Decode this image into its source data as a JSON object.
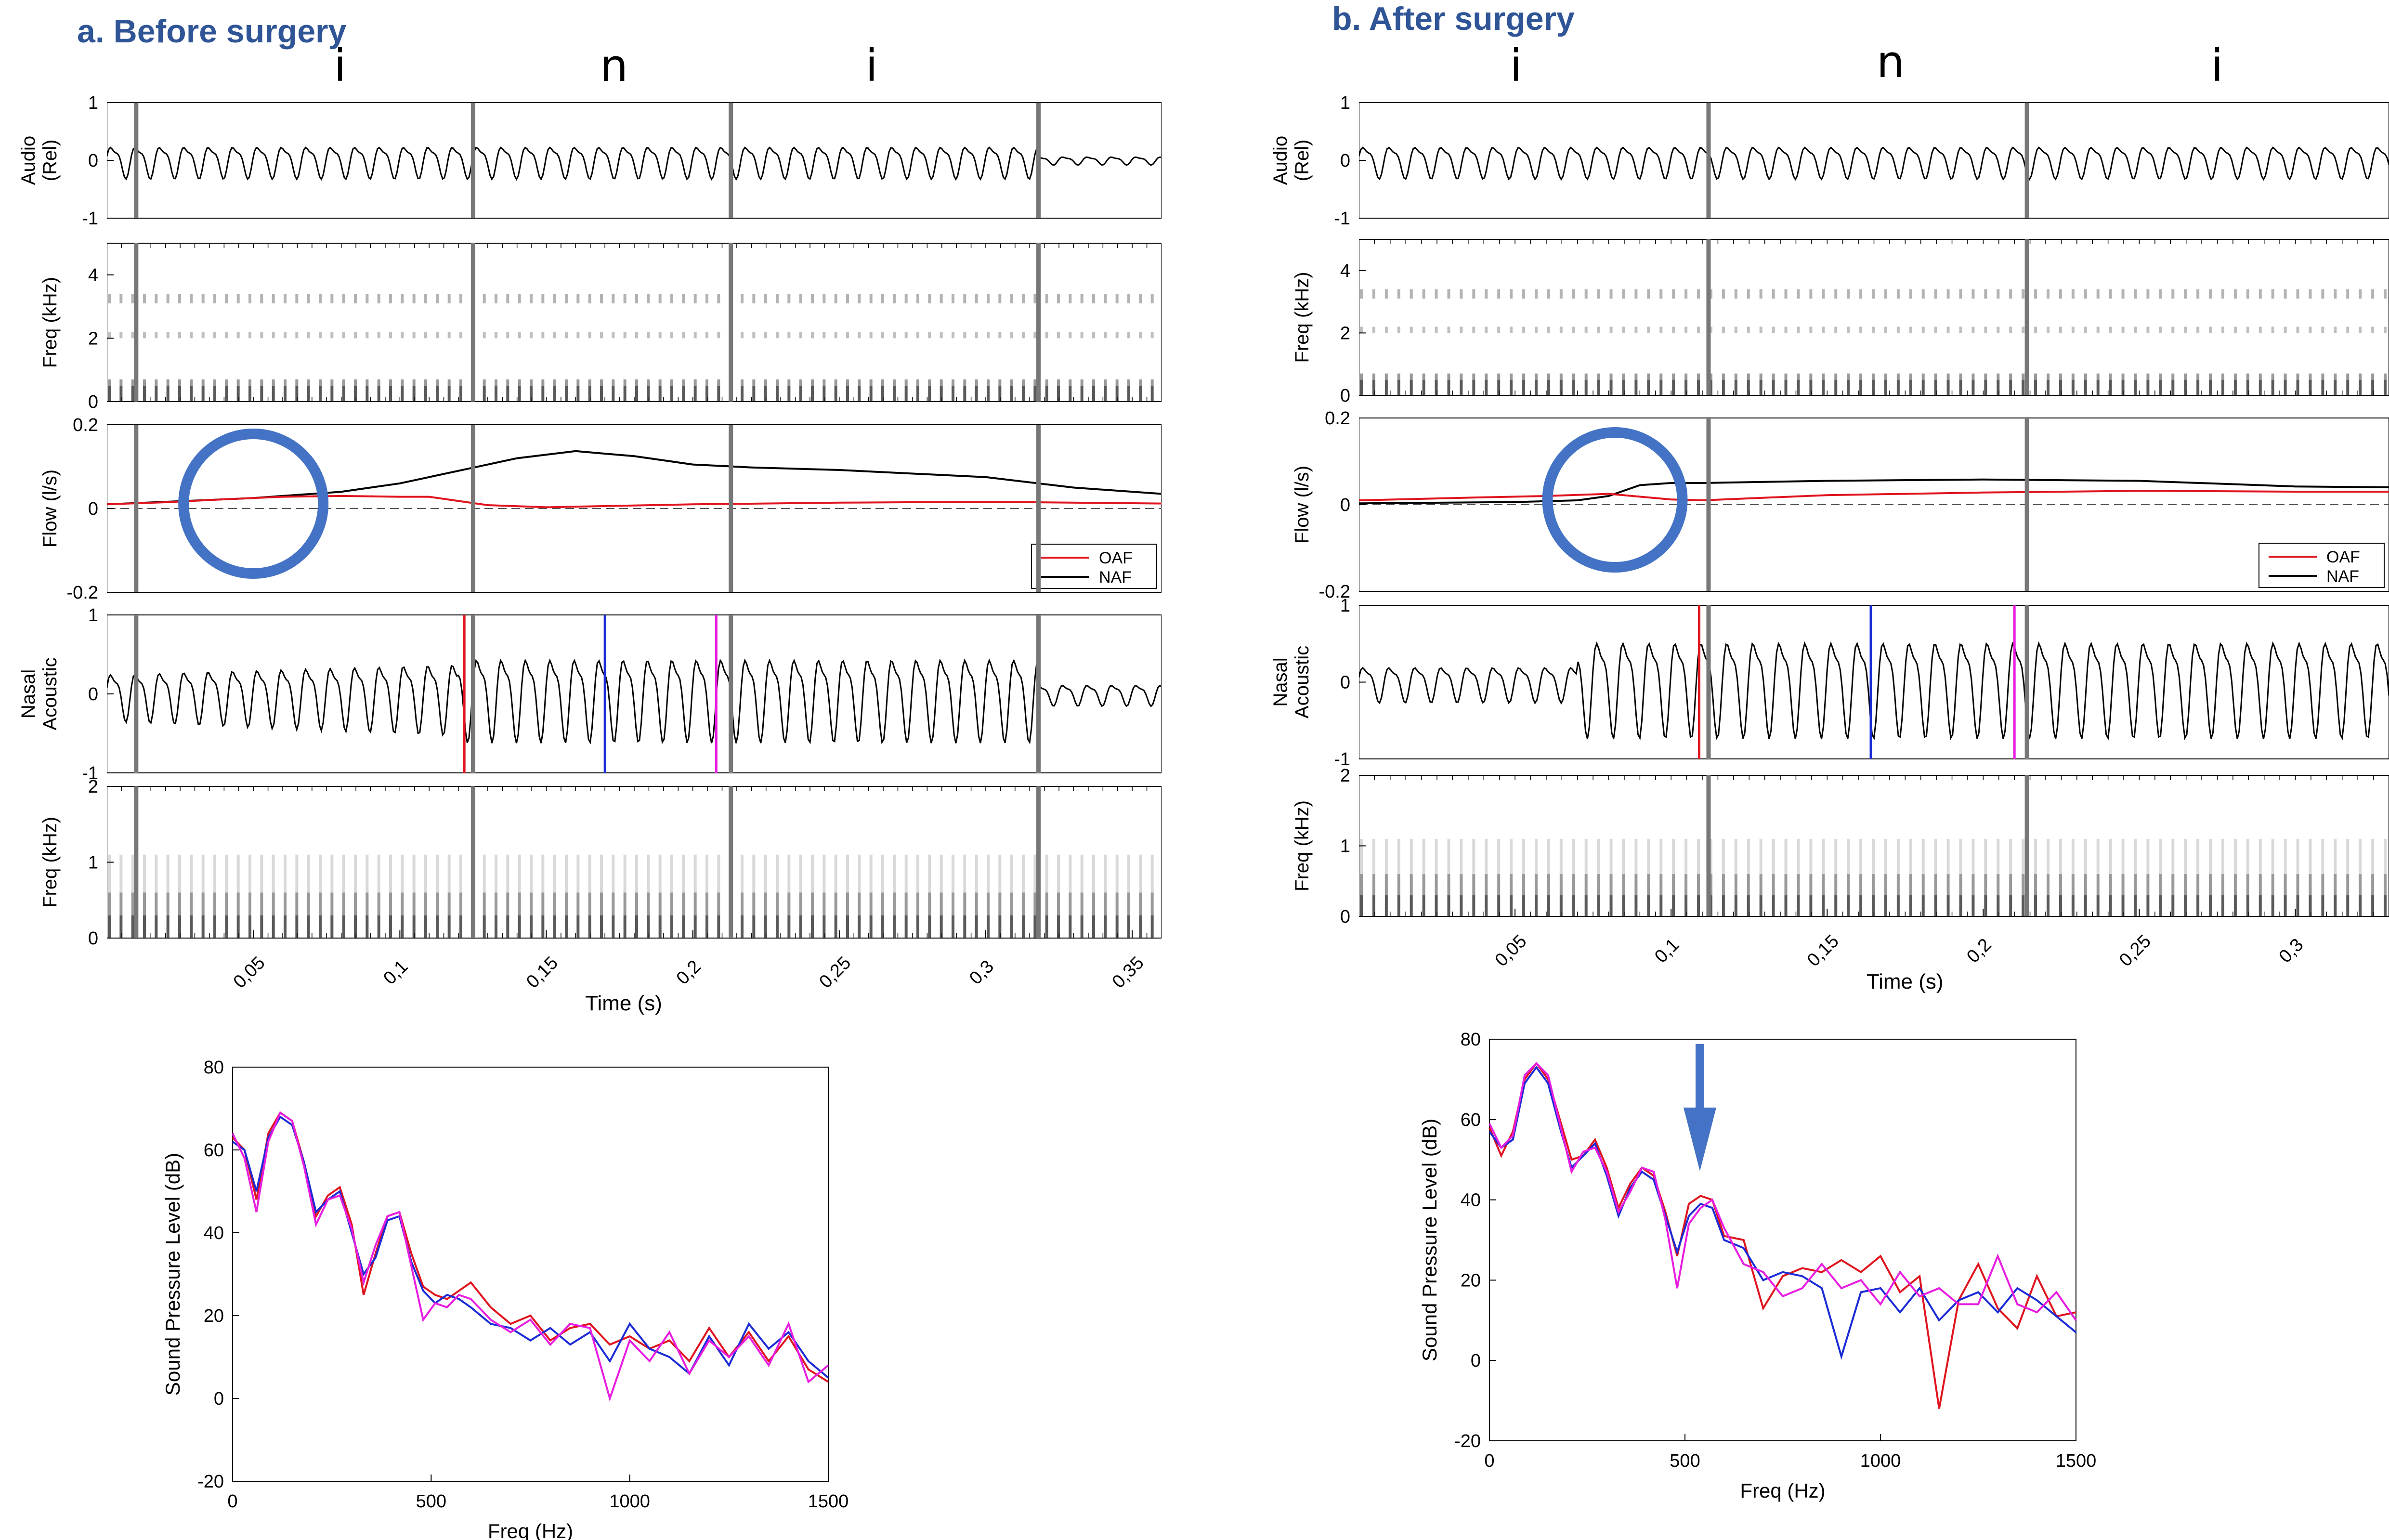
{
  "panels": [
    {
      "title": "a. Before surgery",
      "phonemes": [
        "i",
        "n",
        "i"
      ],
      "segment_boundaries_s": [
        0.01,
        0.125,
        0.213,
        0.318
      ],
      "time_range_s": [
        0,
        0.36
      ],
      "x_ticks_s": [
        0.05,
        0.1,
        0.15,
        0.2,
        0.25,
        0.3,
        0.35
      ],
      "x_tick_labels": [
        "0,05",
        "0,1",
        "0,15",
        "0,2",
        "0,25",
        "0,3",
        "0,35"
      ],
      "x_label": "Time (s)",
      "audio": {
        "ylabel": [
          "Audio",
          "(Rel)"
        ],
        "ylim": [
          -1,
          1
        ],
        "ticks": [
          "1",
          "0",
          "-1"
        ]
      },
      "audio_spectrogram": {
        "ylabel": "Freq (kHz)",
        "ylim": [
          0,
          5
        ],
        "ticks": [
          "4",
          "2",
          "0"
        ]
      },
      "flow": {
        "ylabel": "Flow (l/s)",
        "ylim": [
          -0.2,
          0.2
        ],
        "ticks": [
          "0.2",
          "0",
          "-0.2"
        ],
        "legend": [
          "OAF",
          "NAF"
        ],
        "naf_t": [
          0,
          0.05,
          0.08,
          0.1,
          0.12,
          0.14,
          0.16,
          0.18,
          0.2,
          0.22,
          0.25,
          0.3,
          0.33,
          0.36
        ],
        "naf_v": [
          0.01,
          0.025,
          0.04,
          0.06,
          0.09,
          0.12,
          0.137,
          0.125,
          0.105,
          0.098,
          0.092,
          0.075,
          0.05,
          0.035
        ],
        "oaf_t": [
          0,
          0.02,
          0.04,
          0.06,
          0.08,
          0.1,
          0.11,
          0.13,
          0.15,
          0.2,
          0.25,
          0.3,
          0.36
        ],
        "oaf_v": [
          0.01,
          0.015,
          0.022,
          0.028,
          0.03,
          0.028,
          0.028,
          0.008,
          0.003,
          0.01,
          0.014,
          0.016,
          0.012
        ]
      },
      "nasal": {
        "ylabel": [
          "Nasal",
          "Acoustic"
        ],
        "ylim": [
          -1,
          1
        ],
        "ticks": [
          "1",
          "0",
          "-1"
        ]
      },
      "nasal_spectrogram": {
        "ylabel": "Freq (kHz)",
        "ylim": [
          0,
          2
        ],
        "ticks": [
          "2",
          "1",
          "0"
        ]
      },
      "markers_s": [
        0.122,
        0.17,
        0.208
      ]
    },
    {
      "title": "b. After surgery",
      "phonemes": [
        "i",
        "n",
        "i"
      ],
      "segment_boundaries_s": [
        0.112,
        0.214
      ],
      "time_range_s": [
        0,
        0.33
      ],
      "x_ticks_s": [
        0.05,
        0.1,
        0.15,
        0.2,
        0.25,
        0.3
      ],
      "x_tick_labels": [
        "0,05",
        "0,1",
        "0,15",
        "0,2",
        "0,25",
        "0,3"
      ],
      "x_label": "Time (s)",
      "audio": {
        "ylabel": [
          "Audio",
          "(Rel)"
        ],
        "ylim": [
          -1,
          1
        ],
        "ticks": [
          "1",
          "0",
          "-1"
        ]
      },
      "audio_spectrogram": {
        "ylabel": "Freq (kHz)",
        "ylim": [
          0,
          5
        ],
        "ticks": [
          "4",
          "2",
          "0"
        ]
      },
      "flow": {
        "ylabel": "Flow (l/s)",
        "ylim": [
          -0.2,
          0.2
        ],
        "ticks": [
          "0.2",
          "0",
          "-0.2"
        ],
        "legend": [
          "OAF",
          "NAF"
        ],
        "naf_t": [
          0,
          0.05,
          0.07,
          0.08,
          0.09,
          0.1,
          0.11,
          0.15,
          0.2,
          0.25,
          0.3,
          0.33
        ],
        "naf_v": [
          0.003,
          0.006,
          0.01,
          0.02,
          0.045,
          0.05,
          0.05,
          0.055,
          0.058,
          0.055,
          0.042,
          0.04
        ],
        "oaf_t": [
          0,
          0.04,
          0.06,
          0.08,
          0.1,
          0.11,
          0.15,
          0.2,
          0.25,
          0.3,
          0.33
        ],
        "oaf_v": [
          0.01,
          0.017,
          0.02,
          0.025,
          0.012,
          0.01,
          0.022,
          0.028,
          0.032,
          0.03,
          0.03
        ]
      },
      "nasal": {
        "ylabel": [
          "Nasal",
          "Acoustic"
        ],
        "ylim": [
          -1,
          1
        ],
        "ticks": [
          "1",
          "0",
          "-1"
        ]
      },
      "nasal_spectrogram": {
        "ylabel": "Freq (kHz)",
        "ylim": [
          0,
          2
        ],
        "ticks": [
          "2",
          "1",
          "0"
        ]
      },
      "markers_s": [
        0.109,
        0.164,
        0.21
      ]
    }
  ],
  "chart_data": [
    {
      "type": "line",
      "panel": "a",
      "xlabel": "Freq (Hz)",
      "ylabel": "Sound Pressure Level (dB)",
      "xlim": [
        0,
        1500
      ],
      "ylim": [
        -20,
        80
      ],
      "x_ticks": [
        "0",
        "500",
        "1000",
        "1500"
      ],
      "y_ticks": [
        "80",
        "60",
        "40",
        "20",
        "0",
        "-20"
      ],
      "series_colors": [
        "#e0141e",
        "#1b2bd6",
        "#e81ce0"
      ],
      "x": [
        0,
        30,
        60,
        90,
        120,
        150,
        180,
        210,
        240,
        270,
        300,
        330,
        360,
        390,
        420,
        450,
        480,
        510,
        540,
        570,
        600,
        650,
        700,
        750,
        800,
        850,
        900,
        950,
        1000,
        1050,
        1100,
        1150,
        1200,
        1250,
        1300,
        1350,
        1400,
        1450,
        1500
      ],
      "series": [
        {
          "values": [
            63,
            60,
            48,
            64,
            69,
            67,
            57,
            44,
            49,
            51,
            42,
            25,
            35,
            44,
            45,
            35,
            27,
            25,
            24,
            26,
            28,
            22,
            18,
            20,
            14,
            17,
            18,
            13,
            15,
            12,
            14,
            9,
            17,
            10,
            16,
            9,
            15,
            7,
            4
          ]
        },
        {
          "values": [
            62,
            60,
            50,
            63,
            68,
            66,
            57,
            45,
            48,
            50,
            40,
            30,
            34,
            43,
            44,
            33,
            26,
            23,
            25,
            24,
            22,
            18,
            17,
            14,
            17,
            13,
            16,
            9,
            18,
            12,
            10,
            6,
            15,
            8,
            18,
            12,
            16,
            9,
            5
          ]
        },
        {
          "values": [
            64,
            58,
            45,
            62,
            69,
            67,
            56,
            42,
            48,
            49,
            41,
            28,
            37,
            44,
            45,
            32,
            19,
            23,
            22,
            25,
            24,
            19,
            16,
            19,
            13,
            18,
            17,
            0,
            14,
            9,
            16,
            6,
            14,
            10,
            15,
            8,
            18,
            4,
            8
          ]
        }
      ]
    },
    {
      "type": "line",
      "panel": "b",
      "xlabel": "Freq (Hz)",
      "ylabel": "Sound Pressure Level (dB)",
      "xlim": [
        0,
        1500
      ],
      "ylim": [
        -20,
        80
      ],
      "x_ticks": [
        "0",
        "500",
        "1000",
        "1500"
      ],
      "y_ticks": [
        "80",
        "60",
        "40",
        "20",
        "0",
        "-20"
      ],
      "series_colors": [
        "#e0141e",
        "#1b2bd6",
        "#e81ce0"
      ],
      "x": [
        0,
        30,
        60,
        90,
        120,
        150,
        180,
        210,
        240,
        270,
        300,
        330,
        360,
        390,
        420,
        450,
        480,
        510,
        540,
        570,
        600,
        650,
        700,
        750,
        800,
        850,
        900,
        950,
        1000,
        1050,
        1100,
        1150,
        1200,
        1250,
        1300,
        1350,
        1400,
        1450,
        1500
      ],
      "series": [
        {
          "values": [
            58,
            51,
            57,
            70,
            74,
            70,
            60,
            50,
            51,
            55,
            48,
            38,
            44,
            48,
            46,
            37,
            26,
            39,
            41,
            40,
            31,
            30,
            13,
            21,
            23,
            22,
            25,
            22,
            26,
            17,
            21,
            -12,
            15,
            24,
            13,
            8,
            21,
            11,
            12
          ]
        },
        {
          "values": [
            57,
            53,
            55,
            69,
            73,
            69,
            58,
            48,
            51,
            54,
            46,
            36,
            43,
            47,
            45,
            36,
            27,
            36,
            39,
            38,
            30,
            28,
            20,
            22,
            21,
            18,
            1,
            17,
            18,
            12,
            18,
            10,
            15,
            17,
            12,
            18,
            15,
            11,
            7
          ]
        },
        {
          "values": [
            59,
            53,
            56,
            71,
            74,
            71,
            59,
            47,
            52,
            53,
            47,
            37,
            42,
            48,
            47,
            35,
            18,
            34,
            38,
            40,
            33,
            24,
            22,
            16,
            18,
            24,
            18,
            20,
            14,
            22,
            16,
            18,
            14,
            14,
            26,
            14,
            12,
            17,
            10
          ]
        }
      ]
    }
  ],
  "annotation_colors": {
    "circle": "#4472c4",
    "title": "#2f5597",
    "arrow": "#4472c4"
  }
}
